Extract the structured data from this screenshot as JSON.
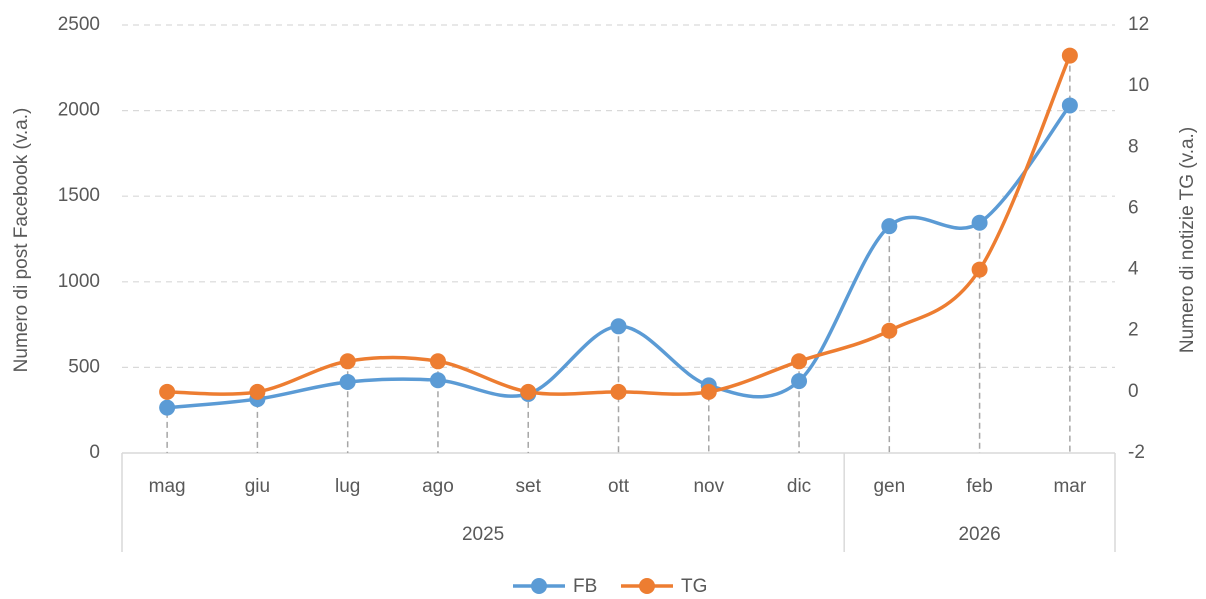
{
  "chart_data": {
    "type": "line",
    "categories": [
      "mag",
      "giu",
      "lug",
      "ago",
      "set",
      "ott",
      "nov",
      "dic",
      "gen",
      "feb",
      "mar"
    ],
    "groups": [
      {
        "label": "2025",
        "start": 0,
        "end": 7
      },
      {
        "label": "2026",
        "start": 8,
        "end": 10
      }
    ],
    "series": [
      {
        "name": "FB",
        "color": "#5b9bd5",
        "values": [
          265,
          315,
          415,
          425,
          345,
          740,
          395,
          420,
          1325,
          1345,
          2030
        ]
      },
      {
        "name": "TG",
        "color": "#ed7d31",
        "axis": "y2",
        "values": [
          0,
          0,
          1,
          1,
          0,
          0,
          0,
          1,
          2,
          4,
          11
        ]
      }
    ],
    "ylabel": "Numero di post Facebook (v.a.)",
    "y2label": "Numero di notizie TG (v.a.)",
    "ylim": [
      0,
      2500
    ],
    "yticks": [
      0,
      500,
      1000,
      1500,
      2000,
      2500
    ],
    "y2lim": [
      -2,
      12
    ],
    "y2ticks": [
      -2,
      0,
      2,
      4,
      6,
      8,
      10,
      12
    ],
    "grid": true,
    "smooth": true,
    "legend": "bottom"
  }
}
